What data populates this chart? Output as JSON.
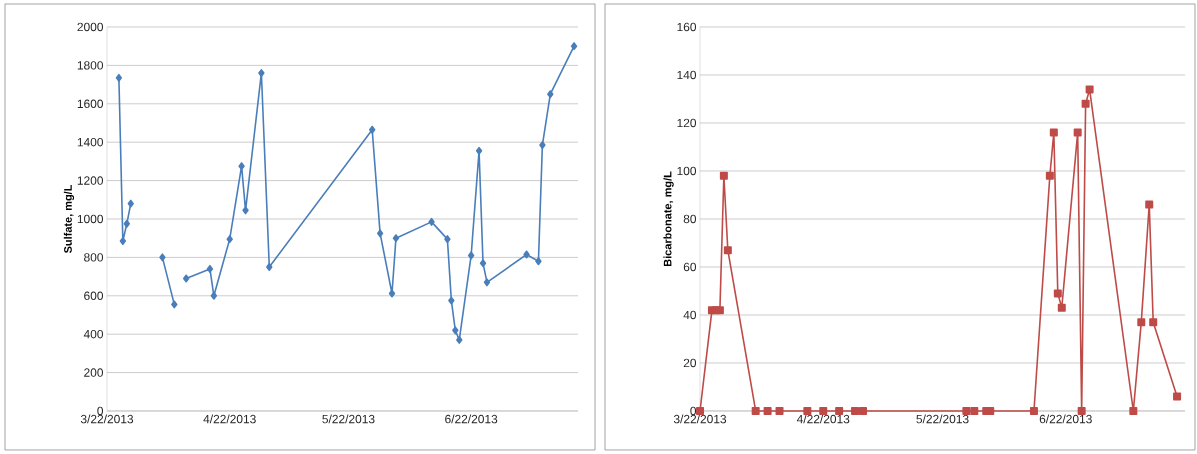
{
  "chart_data": [
    {
      "type": "line",
      "ylabel": "Sulfate, mg/L",
      "color": "#4a7ebb",
      "marker": "diamond",
      "grid": "y",
      "x": [
        "2013-03-25",
        "2013-03-26",
        "2013-03-27",
        "2013-03-28",
        "2013-04-01",
        "2013-04-05",
        "2013-04-08",
        "2013-04-09",
        "2013-04-11",
        "2013-04-17",
        "2013-04-18",
        "2013-04-22",
        "2013-04-25",
        "2013-04-26",
        "2013-04-30",
        "2013-05-02",
        "2013-05-28",
        "2013-05-30",
        "2013-06-02",
        "2013-06-03",
        "2013-06-12",
        "2013-06-16",
        "2013-06-17",
        "2013-06-18",
        "2013-06-19",
        "2013-06-22",
        "2013-06-24",
        "2013-06-25",
        "2013-06-26",
        "2013-07-06",
        "2013-07-09",
        "2013-07-10",
        "2013-07-12",
        "2013-07-18"
      ],
      "values": [
        1735,
        885,
        975,
        1080,
        null,
        800,
        555,
        null,
        690,
        740,
        600,
        895,
        1275,
        1045,
        1760,
        750,
        1465,
        925,
        612,
        900,
        985,
        895,
        575,
        420,
        370,
        810,
        1355,
        770,
        670,
        815,
        780,
        1385,
        1650,
        1900
      ],
      "xlim": [
        "2013-03-22",
        "2013-07-19"
      ],
      "xticks": [
        {
          "value": "2013-03-22",
          "label": "3/22/2013"
        },
        {
          "value": "2013-04-22",
          "label": "4/22/2013"
        },
        {
          "value": "2013-05-22",
          "label": "5/22/2013"
        },
        {
          "value": "2013-06-22",
          "label": "6/22/2013"
        }
      ],
      "ylim": [
        0,
        2000
      ],
      "yticks": [
        0,
        200,
        400,
        600,
        800,
        1000,
        1200,
        1400,
        1600,
        1800,
        2000
      ]
    },
    {
      "type": "line",
      "ylabel": "Bicarbonate, mg/L",
      "color": "#be4b48",
      "marker": "square",
      "grid": "y",
      "x": [
        "2013-03-22",
        "2013-03-25",
        "2013-03-26",
        "2013-03-27",
        "2013-03-28",
        "2013-03-29",
        "2013-04-05",
        "2013-04-08",
        "2013-04-11",
        "2013-04-18",
        "2013-04-22",
        "2013-04-26",
        "2013-04-30",
        "2013-05-02",
        "2013-05-28",
        "2013-05-30",
        "2013-06-02",
        "2013-06-03",
        "2013-06-14",
        "2013-06-18",
        "2013-06-19",
        "2013-06-20",
        "2013-06-21",
        "2013-06-25",
        "2013-06-26",
        "2013-06-27",
        "2013-06-28",
        "2013-07-09",
        "2013-07-11",
        "2013-07-13",
        "2013-07-14",
        "2013-07-20"
      ],
      "values": [
        0,
        42,
        42,
        42,
        98,
        67,
        0,
        0,
        0,
        0,
        0,
        0,
        0,
        0,
        0,
        0,
        0,
        0,
        0,
        98,
        116,
        49,
        43,
        116,
        0,
        128,
        134,
        0,
        37,
        86,
        37,
        6
      ],
      "xlim": [
        "2013-03-22",
        "2013-07-22"
      ],
      "xticks": [
        {
          "value": "2013-03-22",
          "label": "3/22/2013"
        },
        {
          "value": "2013-04-22",
          "label": "4/22/2013"
        },
        {
          "value": "2013-05-22",
          "label": "5/22/2013"
        },
        {
          "value": "2013-06-22",
          "label": "6/22/2013"
        }
      ],
      "ylim": [
        0,
        160
      ],
      "yticks": [
        0,
        20,
        40,
        60,
        80,
        100,
        120,
        140,
        160
      ]
    }
  ]
}
